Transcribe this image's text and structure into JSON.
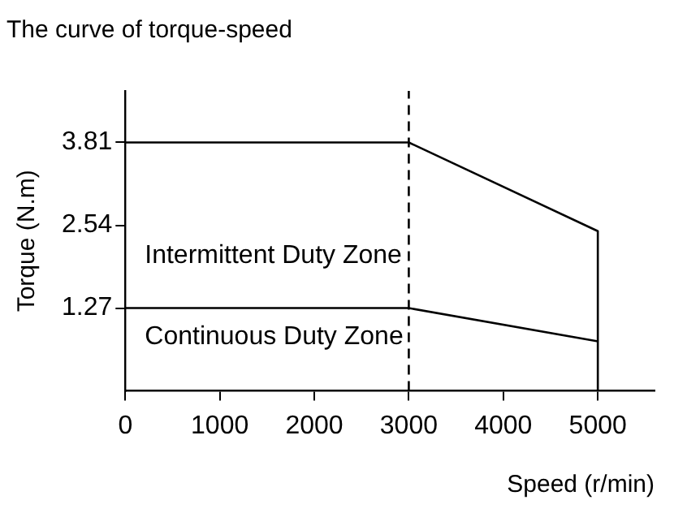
{
  "chart_data": {
    "type": "line",
    "title": "The curve of torque-speed",
    "xlabel": "Speed (r/min)",
    "ylabel": "Torque (N.m)",
    "xlim": [
      0,
      5600
    ],
    "xticks": [
      0,
      1000,
      2000,
      3000,
      4000,
      5000
    ],
    "ylim": [
      0,
      4.6
    ],
    "yticks": [
      1.27,
      2.54,
      3.81
    ],
    "series": [
      {
        "x": [
          0,
          3000,
          5000,
          5000
        ],
        "values": [
          3.81,
          3.81,
          2.45,
          0
        ],
        "color": "#000000",
        "line_style": "solid"
      },
      {
        "x": [
          0,
          3000,
          5000
        ],
        "values": [
          1.27,
          1.27,
          0.76
        ],
        "color": "#000000",
        "line_style": "solid"
      }
    ],
    "ref_lines": [
      {
        "axis": "x",
        "value": 3000,
        "color": "#000000",
        "line_style": "dashed"
      }
    ],
    "annotations": [
      "Intermittent Duty Zone",
      "Continuous Duty Zone"
    ],
    "grid": false,
    "legend": false,
    "marker": "none"
  }
}
